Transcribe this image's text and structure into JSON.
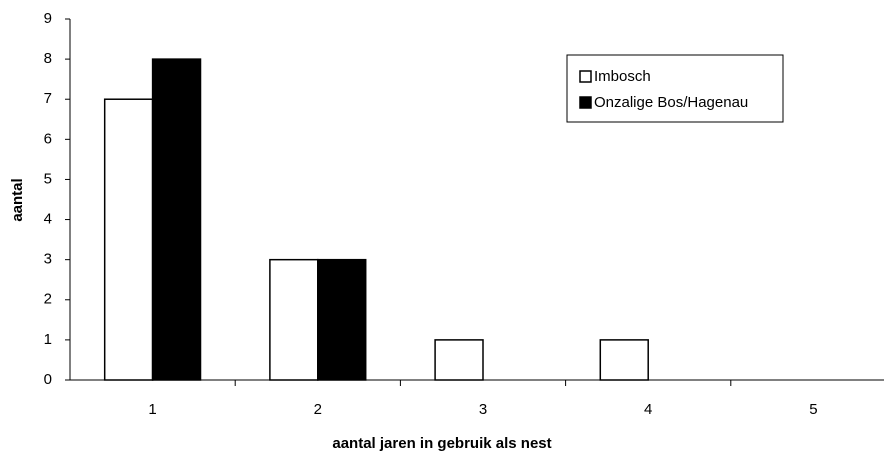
{
  "chart_data": {
    "type": "bar",
    "categories": [
      "1",
      "2",
      "3",
      "4",
      "5"
    ],
    "series": [
      {
        "name": "Imbosch",
        "color": "#ffffff",
        "values": [
          7,
          3,
          1,
          1,
          0
        ]
      },
      {
        "name": "Onzalige Bos/Hagenau",
        "color": "#000000",
        "values": [
          8,
          3,
          0,
          0,
          0
        ]
      }
    ],
    "xlabel": "aantal jaren in gebruik als nest",
    "ylabel": "aantal",
    "ylim": [
      0,
      9
    ],
    "yticks": [
      0,
      1,
      2,
      3,
      4,
      5,
      6,
      7,
      8,
      9
    ],
    "grid": false,
    "legend": "upper right"
  }
}
